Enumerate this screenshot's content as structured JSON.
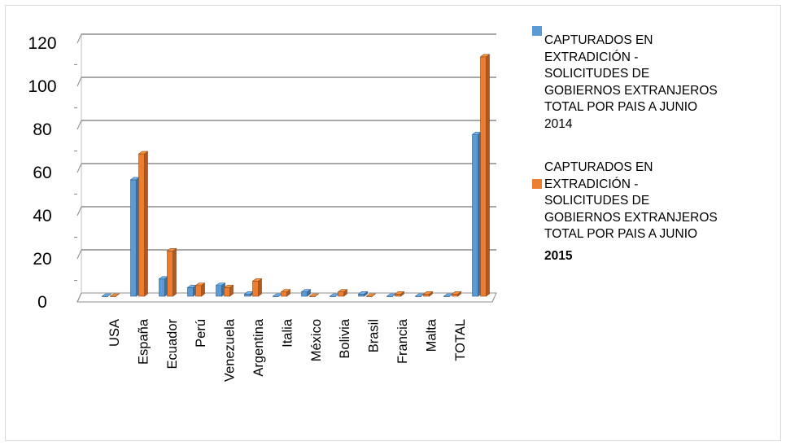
{
  "chart_data": {
    "type": "bar",
    "style": "3d-clustered-column",
    "categories": [
      "USA",
      "España",
      "Ecuador",
      "Perú",
      "Venezuela",
      "Argentina",
      "Italia",
      "México",
      "Bolivia",
      "Brasil",
      "Francia",
      "Malta",
      "TOTAL",
      ""
    ],
    "series": [
      {
        "name": "CAPTURADOS EN EXTRADICIÓN - SOLICITUDES DE GOBIERNOS EXTRANJEROS TOTAL POR PAIS A JUNIO 2014",
        "color": "#5b9bd5",
        "values": [
          0,
          54,
          8,
          4,
          5,
          1,
          0,
          2,
          0,
          1,
          0,
          0,
          0,
          75
        ]
      },
      {
        "name": "CAPTURADOS EN EXTRADICIÓN - SOLICITUDES DE GOBIERNOS EXTRANJEROS TOTAL POR PAIS A JUNIO 2015",
        "color": "#ed7d31",
        "values": [
          0,
          66,
          21,
          5,
          4,
          7,
          2,
          0,
          2,
          0,
          1,
          1,
          1,
          111
        ]
      }
    ],
    "y_ticks": [
      "0",
      "20",
      "40",
      "60",
      "80",
      "100",
      "120"
    ],
    "ylim": [
      0,
      120
    ],
    "grid": true,
    "legend_position": "right",
    "title": "",
    "xlabel": "",
    "ylabel": ""
  },
  "legend": {
    "series1_text": "CAPTURADOS EN\nEXTRADICIÓN -\nSOLICITUDES DE\nGOBIERNOS EXTRANJEROS\nTOTAL POR PAIS A JUNIO\n2014",
    "series2_text": "CAPTURADOS EN\nEXTRADICIÓN -\nSOLICITUDES DE\nGOBIERNOS EXTRANJEROS\nTOTAL POR PAIS A JUNIO",
    "series2_year": "2015"
  }
}
